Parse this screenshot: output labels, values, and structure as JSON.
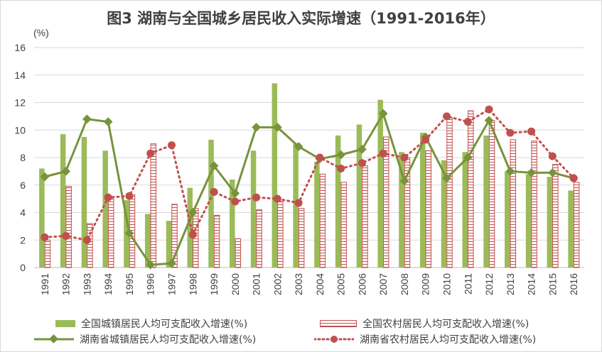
{
  "chart_data": {
    "type": "bar",
    "title": "图3 湖南与全国城乡居民收入实际增速（1991-2016年）",
    "ylabel": "(%)",
    "ylim": [
      0,
      16
    ],
    "yticks": [
      "0",
      "2",
      "4",
      "6",
      "8",
      "10",
      "12",
      "14",
      "16"
    ],
    "grid": true,
    "legend_position": "bottom",
    "categories": [
      "1991",
      "1992",
      "1993",
      "1994",
      "1995",
      "1996",
      "1997",
      "1998",
      "1999",
      "2000",
      "2001",
      "2002",
      "2003",
      "2004",
      "2005",
      "2006",
      "2007",
      "2008",
      "2009",
      "2010",
      "2011",
      "2012",
      "2013",
      "2014",
      "2015",
      "2016"
    ],
    "series": [
      {
        "name": "全国城镇居民人均可支配收入增速(%)",
        "kind": "bar",
        "color": "#9bbb59",
        "values": [
          7.2,
          9.7,
          9.5,
          8.5,
          4.9,
          3.9,
          3.4,
          5.8,
          9.3,
          6.4,
          8.5,
          13.4,
          9.0,
          7.7,
          9.6,
          10.4,
          12.2,
          8.4,
          9.8,
          7.8,
          8.4,
          9.6,
          7.0,
          6.8,
          6.6,
          5.6
        ]
      },
      {
        "name": "全国农村居民人均可支配收入增速(%)",
        "kind": "bar-hatched",
        "color": "#c0504d",
        "values": [
          2.0,
          5.9,
          3.2,
          5.0,
          5.3,
          9.0,
          4.6,
          4.3,
          3.8,
          2.1,
          4.2,
          4.8,
          4.3,
          6.8,
          6.2,
          7.4,
          9.5,
          8.0,
          8.5,
          10.9,
          11.4,
          10.7,
          9.3,
          9.2,
          7.5,
          6.2
        ]
      },
      {
        "name": "湖南省城镇居民人均可支配收入增速(%)",
        "kind": "line",
        "color": "#77933c",
        "values": [
          6.6,
          7.0,
          10.8,
          10.6,
          2.5,
          0.2,
          0.3,
          4.0,
          7.4,
          5.4,
          10.2,
          10.2,
          8.8,
          7.9,
          8.2,
          8.6,
          11.2,
          6.3,
          9.5,
          6.5,
          8.0,
          10.7,
          7.0,
          6.9,
          6.9,
          6.5
        ]
      },
      {
        "name": "湖南省农村居民人均可支配收入增速(%)",
        "kind": "dotted-line",
        "color": "#c0504d",
        "values": [
          2.2,
          2.3,
          2.0,
          5.1,
          5.2,
          8.3,
          8.9,
          2.4,
          5.5,
          4.8,
          5.1,
          5.0,
          4.7,
          8.0,
          7.2,
          7.6,
          8.3,
          8.0,
          9.3,
          11.0,
          10.6,
          11.5,
          9.8,
          9.9,
          8.1,
          6.5
        ]
      }
    ]
  }
}
